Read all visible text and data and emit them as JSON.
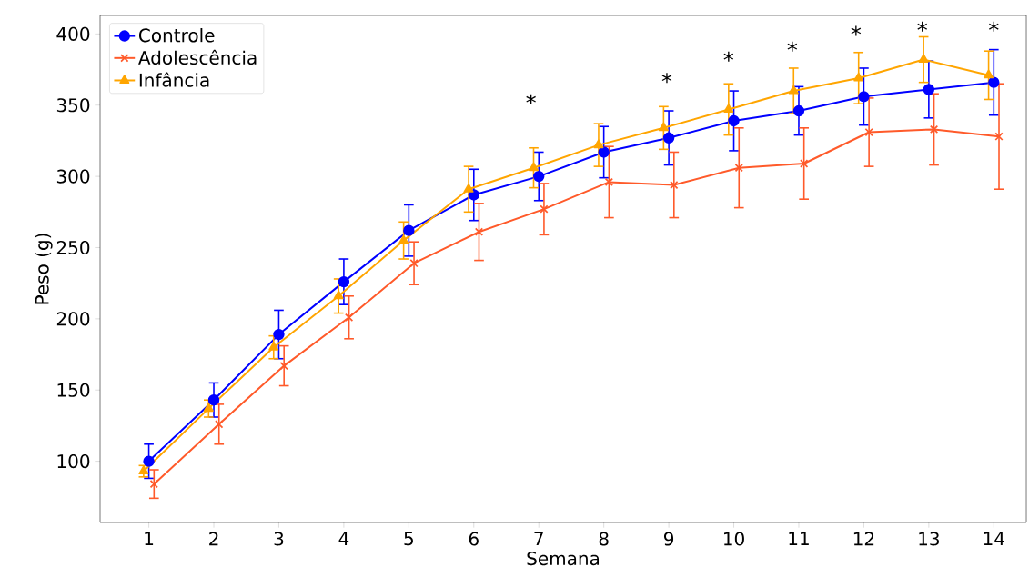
{
  "chart_data": {
    "type": "line",
    "xlabel": "Semana",
    "ylabel": "Peso (g)",
    "xlim": [
      0.25,
      14.5
    ],
    "xticks": [
      1,
      2,
      3,
      4,
      5,
      6,
      7,
      8,
      9,
      10,
      11,
      12,
      13,
      14
    ],
    "ylim": [
      57,
      413
    ],
    "yticks": [
      100,
      150,
      200,
      250,
      300,
      350,
      400
    ],
    "legend": "top left",
    "grid": false,
    "series": [
      {
        "name": "Controle",
        "color": "#0000ff",
        "marker": "circle",
        "x": [
          1,
          2,
          3,
          4,
          5,
          6,
          7,
          8,
          9,
          10,
          11,
          12,
          13,
          14
        ],
        "values": [
          100,
          143,
          189,
          226,
          262,
          287,
          300,
          317,
          327,
          339,
          346,
          356,
          361,
          366
        ],
        "errors": [
          12,
          12,
          17,
          16,
          18,
          18,
          17,
          18,
          19,
          21,
          17,
          20,
          20,
          23
        ]
      },
      {
        "name": "Adolescência",
        "color": "#ff5a2a",
        "marker": "cross",
        "x": [
          1.08,
          2.08,
          3.08,
          4.08,
          5.08,
          6.08,
          7.08,
          8.08,
          9.08,
          10.08,
          11.08,
          12.08,
          13.08,
          14.08
        ],
        "values": [
          84,
          126,
          167,
          201,
          239,
          261,
          277,
          296,
          294,
          306,
          309,
          331,
          333,
          328
        ],
        "errors": [
          10,
          14,
          14,
          15,
          15,
          20,
          18,
          25,
          23,
          28,
          25,
          24,
          25,
          37
        ]
      },
      {
        "name": "Infância",
        "color": "#ffa500",
        "marker": "triangle",
        "x": [
          0.92,
          1.92,
          2.92,
          3.92,
          4.92,
          5.92,
          6.92,
          7.92,
          8.92,
          9.92,
          10.92,
          11.92,
          12.92,
          13.92
        ],
        "values": [
          93,
          137,
          180,
          216,
          255,
          291,
          306,
          322,
          334,
          347,
          360,
          369,
          382,
          371
        ],
        "errors": [
          4,
          6,
          8,
          12,
          13,
          16,
          14,
          15,
          15,
          18,
          16,
          18,
          16,
          17
        ]
      }
    ],
    "annotations": [
      "*",
      "*",
      "*",
      "*",
      "*",
      "*",
      "*"
    ]
  }
}
